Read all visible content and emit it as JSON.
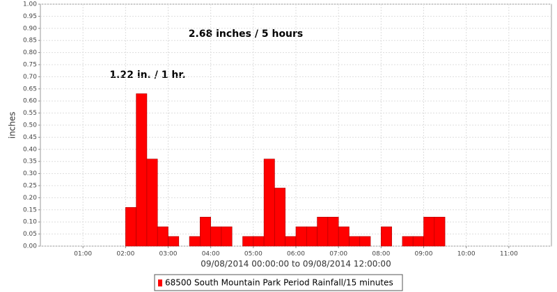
{
  "chart_data": {
    "type": "histogram",
    "annotations": [
      "2.68 inches / 5 hours",
      "1.22 in. / 1 hr."
    ],
    "xlabel": "09/08/2014 00:00:00 to 09/08/2014 12:00:00",
    "ylabel": "inches",
    "bins": [
      2,
      2.25,
      2.5,
      2.75,
      3,
      3.25,
      3.5,
      3.75,
      4,
      4.25,
      4.5,
      4.75,
      5,
      5.25,
      5.5,
      5.75,
      6,
      6.25,
      6.5,
      6.75,
      7,
      7.25,
      7.5,
      7.75,
      8,
      8.25,
      8.5,
      8.75,
      9,
      9.25,
      9.5
    ],
    "series": [
      {
        "name": "68500 South Mountain Park Period Rainfall/15 minutes",
        "color": "#ff0000",
        "values": [
          0.16,
          0.63,
          0.36,
          0.08,
          0.04,
          0,
          0.04,
          0.12,
          0.08,
          0.08,
          0,
          0.04,
          0.04,
          0.36,
          0.24,
          0.04,
          0.08,
          0.08,
          0.12,
          0.12,
          0.08,
          0.04,
          0.04,
          0,
          0.08,
          0,
          0.04,
          0.04,
          0.12,
          0.12
        ]
      }
    ],
    "xlim": [
      0,
      12
    ],
    "xticks": [
      {
        "value": 1,
        "label": "01:00"
      },
      {
        "value": 2,
        "label": "02:00"
      },
      {
        "value": 3,
        "label": "03:00"
      },
      {
        "value": 4,
        "label": "04:00"
      },
      {
        "value": 5,
        "label": "05:00"
      },
      {
        "value": 6,
        "label": "06:00"
      },
      {
        "value": 7,
        "label": "07:00"
      },
      {
        "value": 8,
        "label": "08:00"
      },
      {
        "value": 9,
        "label": "09:00"
      },
      {
        "value": 10,
        "label": "10:00"
      },
      {
        "value": 11,
        "label": "11:00"
      }
    ],
    "ylim": [
      0,
      1
    ],
    "yticks": [
      {
        "value": 0,
        "label": "0.00"
      },
      {
        "value": 0.05,
        "label": "0.05"
      },
      {
        "value": 0.1,
        "label": "0.10"
      },
      {
        "value": 0.15,
        "label": "0.15"
      },
      {
        "value": 0.2,
        "label": "0.20"
      },
      {
        "value": 0.25,
        "label": "0.25"
      },
      {
        "value": 0.3,
        "label": "0.30"
      },
      {
        "value": 0.35,
        "label": "0.35"
      },
      {
        "value": 0.4,
        "label": "0.40"
      },
      {
        "value": 0.45,
        "label": "0.45"
      },
      {
        "value": 0.5,
        "label": "0.50"
      },
      {
        "value": 0.55,
        "label": "0.55"
      },
      {
        "value": 0.6,
        "label": "0.60"
      },
      {
        "value": 0.65,
        "label": "0.65"
      },
      {
        "value": 0.7,
        "label": "0.70"
      },
      {
        "value": 0.75,
        "label": "0.75"
      },
      {
        "value": 0.8,
        "label": "0.80"
      },
      {
        "value": 0.85,
        "label": "0.85"
      },
      {
        "value": 0.9,
        "label": "0.90"
      },
      {
        "value": 0.95,
        "label": "0.95"
      },
      {
        "value": 1,
        "label": "1.00"
      }
    ],
    "grid": true,
    "legend": "bottom"
  }
}
